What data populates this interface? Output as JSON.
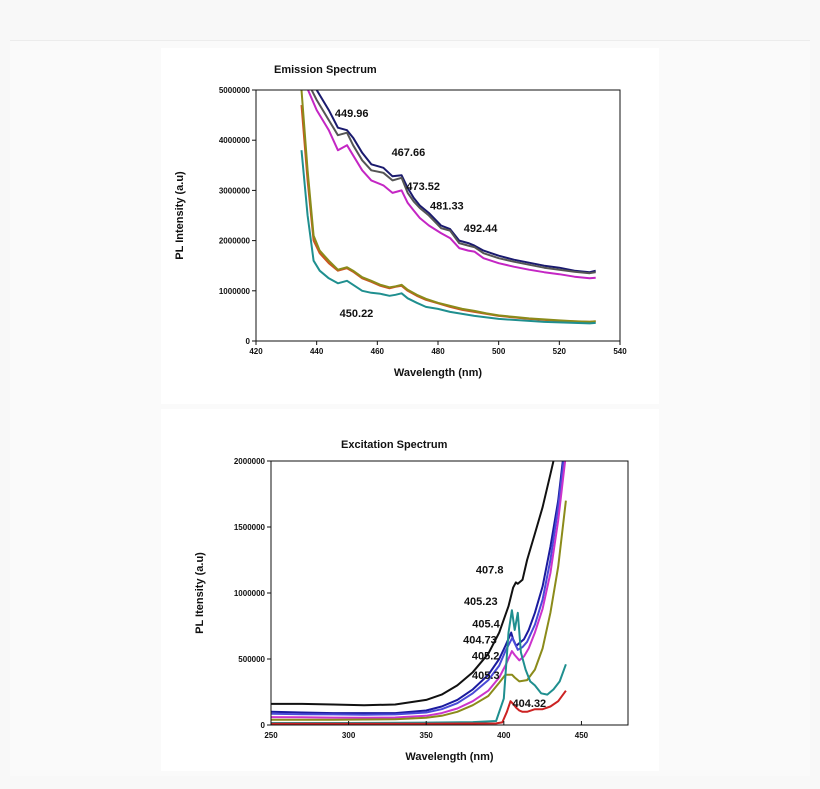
{
  "chart_data": [
    {
      "type": "line",
      "title": "Emission Spectrum",
      "xlabel": "Wavelength (nm)",
      "ylabel": "PL Intensity (a.u)",
      "xlim": [
        420,
        540
      ],
      "ylim": [
        0,
        5000000
      ],
      "xticks": [
        420,
        440,
        460,
        480,
        500,
        520,
        540
      ],
      "yticks": [
        0,
        1000000,
        2000000,
        3000000,
        4000000,
        5000000
      ],
      "xtick_labels": [
        "420",
        "440",
        "460",
        "480",
        "500",
        "520",
        "540"
      ],
      "ytick_labels": [
        "0",
        "1000000",
        "2000000",
        "3000000",
        "4000000",
        "5000000"
      ],
      "grid": false,
      "series": [
        {
          "color": "#1a1a6e",
          "x": [
            435,
            440,
            444,
            447,
            450,
            452,
            455,
            458,
            462,
            465,
            468,
            470,
            472,
            474,
            477,
            481,
            484,
            487,
            490,
            492,
            495,
            500,
            505,
            510,
            515,
            520,
            525,
            530,
            532
          ],
          "y": [
            5500000,
            5000000,
            4600000,
            4250000,
            4200000,
            4050000,
            3750000,
            3520000,
            3450000,
            3280000,
            3300000,
            3050000,
            2850000,
            2700000,
            2550000,
            2300000,
            2230000,
            2000000,
            1950000,
            1900000,
            1800000,
            1700000,
            1620000,
            1560000,
            1500000,
            1460000,
            1400000,
            1370000,
            1400000
          ]
        },
        {
          "color": "#c426c4",
          "x": [
            435,
            440,
            444,
            447,
            450,
            452,
            455,
            458,
            462,
            465,
            468,
            470,
            472,
            474,
            477,
            481,
            484,
            487,
            490,
            492,
            495,
            500,
            505,
            510,
            515,
            520,
            525,
            530,
            532
          ],
          "y": [
            5300000,
            4600000,
            4200000,
            3800000,
            3900000,
            3700000,
            3400000,
            3200000,
            3100000,
            2950000,
            3000000,
            2750000,
            2600000,
            2450000,
            2300000,
            2150000,
            2050000,
            1850000,
            1800000,
            1780000,
            1650000,
            1550000,
            1480000,
            1420000,
            1370000,
            1330000,
            1280000,
            1250000,
            1260000
          ]
        },
        {
          "color": "#555555",
          "x": [
            435,
            440,
            444,
            447,
            450,
            452,
            455,
            458,
            462,
            465,
            468,
            470,
            472,
            474,
            477,
            481,
            484,
            487,
            490,
            492,
            495,
            500,
            505,
            510,
            515,
            520,
            525,
            530,
            532
          ],
          "y": [
            5400000,
            4800000,
            4400000,
            4100000,
            4150000,
            3900000,
            3600000,
            3400000,
            3350000,
            3200000,
            3250000,
            2950000,
            2780000,
            2650000,
            2500000,
            2250000,
            2200000,
            1950000,
            1900000,
            1870000,
            1750000,
            1650000,
            1580000,
            1520000,
            1460000,
            1420000,
            1380000,
            1350000,
            1370000
          ]
        },
        {
          "color": "#cc5522",
          "x": [
            435,
            437,
            439,
            441,
            444,
            447,
            450,
            452,
            455,
            458,
            461,
            464,
            466,
            468,
            470,
            473,
            476,
            480,
            484,
            488,
            492,
            496,
            500,
            505,
            510,
            515,
            520,
            525,
            530,
            532
          ],
          "y": [
            4700000,
            3200000,
            2000000,
            1750000,
            1550000,
            1400000,
            1450000,
            1380000,
            1250000,
            1180000,
            1100000,
            1050000,
            1080000,
            1100000,
            1000000,
            900000,
            820000,
            750000,
            680000,
            620000,
            580000,
            540000,
            500000,
            470000,
            440000,
            420000,
            400000,
            390000,
            380000,
            390000
          ]
        },
        {
          "color": "#8b8b1a",
          "x": [
            435,
            437,
            439,
            441,
            444,
            447,
            450,
            452,
            455,
            458,
            461,
            464,
            466,
            468,
            470,
            473,
            476,
            480,
            484,
            488,
            492,
            496,
            500,
            505,
            510,
            515,
            520,
            525,
            530,
            532
          ],
          "y": [
            5000000,
            3400000,
            2100000,
            1800000,
            1600000,
            1420000,
            1470000,
            1400000,
            1270000,
            1200000,
            1120000,
            1070000,
            1090000,
            1120000,
            1020000,
            920000,
            840000,
            760000,
            700000,
            640000,
            600000,
            550000,
            510000,
            480000,
            450000,
            430000,
            410000,
            395000,
            385000,
            395000
          ]
        },
        {
          "color": "#1f8f8f",
          "x": [
            435,
            437,
            439,
            441,
            444,
            447,
            450,
            452,
            455,
            458,
            461,
            464,
            466,
            468,
            470,
            473,
            476,
            480,
            484,
            488,
            492,
            496,
            500,
            505,
            510,
            515,
            520,
            525,
            530,
            532
          ],
          "y": [
            3800000,
            2500000,
            1600000,
            1400000,
            1250000,
            1150000,
            1200000,
            1120000,
            1000000,
            960000,
            940000,
            900000,
            920000,
            950000,
            850000,
            760000,
            680000,
            640000,
            580000,
            540000,
            500000,
            470000,
            440000,
            420000,
            400000,
            380000,
            370000,
            360000,
            350000,
            360000
          ]
        }
      ],
      "annotations": [
        {
          "text": "449.96",
          "x": 449.96,
          "y": 4320000
        },
        {
          "text": "467.66",
          "x": 467.66,
          "y": 3530000
        },
        {
          "text": "473.52",
          "x": 473.52,
          "y": 2870000
        },
        {
          "text": "481.33",
          "x": 481.33,
          "y": 2480000
        },
        {
          "text": "492.44",
          "x": 492.44,
          "y": 2030000
        },
        {
          "text": "450.22",
          "x": 450.22,
          "y": 800000
        }
      ]
    },
    {
      "type": "line",
      "title": "Excitation Spectrum",
      "xlabel": "Wavelength (nm)",
      "ylabel": "PL Itensity (a.u)",
      "xlim": [
        250,
        480
      ],
      "ylim": [
        0,
        2000000
      ],
      "xticks": [
        250,
        300,
        350,
        400,
        450
      ],
      "yticks": [
        0,
        500000,
        1000000,
        1500000,
        2000000
      ],
      "xtick_labels": [
        "250",
        "300",
        "350",
        "400",
        "450"
      ],
      "ytick_labels": [
        "0",
        "500000",
        "1000000",
        "1500000",
        "2000000"
      ],
      "grid": false,
      "series": [
        {
          "color": "#111111",
          "x": [
            250,
            270,
            290,
            310,
            330,
            350,
            360,
            370,
            380,
            390,
            397,
            403,
            406,
            407.8,
            409,
            412,
            415,
            420,
            425,
            430,
            433,
            435
          ],
          "y": [
            160000,
            160000,
            155000,
            150000,
            155000,
            190000,
            230000,
            300000,
            400000,
            540000,
            700000,
            900000,
            1040000,
            1080000,
            1070000,
            1100000,
            1250000,
            1450000,
            1650000,
            1900000,
            2050000,
            2100000
          ]
        },
        {
          "color": "#1a1a9e",
          "x": [
            250,
            270,
            290,
            310,
            330,
            350,
            360,
            370,
            380,
            390,
            397,
            401,
            404.73,
            406,
            408,
            410,
            413,
            416,
            420,
            425,
            430,
            435,
            438,
            440
          ],
          "y": [
            100000,
            95000,
            90000,
            90000,
            90000,
            110000,
            140000,
            190000,
            270000,
            380000,
            500000,
            600000,
            700000,
            650000,
            600000,
            620000,
            650000,
            720000,
            850000,
            1050000,
            1350000,
            1700000,
            2000000,
            2200000
          ]
        },
        {
          "color": "#4a4ad8",
          "x": [
            250,
            270,
            290,
            310,
            330,
            350,
            360,
            370,
            380,
            390,
            397,
            401,
            405.4,
            407,
            409,
            412,
            415,
            420,
            425,
            430,
            435,
            438,
            440
          ],
          "y": [
            85000,
            82000,
            80000,
            78000,
            80000,
            95000,
            120000,
            165000,
            240000,
            340000,
            450000,
            560000,
            660000,
            620000,
            570000,
            590000,
            630000,
            760000,
            950000,
            1250000,
            1650000,
            1950000,
            2150000
          ]
        },
        {
          "color": "#cc33cc",
          "x": [
            250,
            270,
            290,
            310,
            330,
            350,
            360,
            370,
            380,
            390,
            397,
            401,
            405.2,
            407,
            410,
            413,
            416,
            420,
            425,
            430,
            435,
            438,
            440
          ],
          "y": [
            60000,
            58000,
            56000,
            55000,
            57000,
            70000,
            90000,
            125000,
            180000,
            260000,
            360000,
            450000,
            560000,
            530000,
            490000,
            520000,
            580000,
            700000,
            880000,
            1150000,
            1550000,
            1850000,
            2050000
          ]
        },
        {
          "color": "#8b8b1a",
          "x": [
            250,
            270,
            290,
            310,
            330,
            350,
            360,
            370,
            380,
            390,
            397,
            401,
            405.3,
            407,
            410,
            415,
            420,
            425,
            430,
            435,
            440
          ],
          "y": [
            40000,
            40000,
            40000,
            42000,
            44000,
            55000,
            70000,
            100000,
            150000,
            220000,
            320000,
            380000,
            380000,
            360000,
            330000,
            340000,
            420000,
            580000,
            850000,
            1200000,
            1700000
          ]
        },
        {
          "color": "#1f8f8f",
          "x": [
            250,
            300,
            350,
            380,
            395,
            400,
            403,
            405.23,
            407,
            409,
            411,
            414,
            417,
            420,
            424,
            428,
            432,
            436,
            440
          ],
          "y": [
            15000,
            15000,
            18000,
            22000,
            30000,
            200000,
            700000,
            870000,
            720000,
            850000,
            550000,
            420000,
            330000,
            300000,
            240000,
            230000,
            270000,
            330000,
            460000
          ]
        },
        {
          "color": "#cc2222",
          "x": [
            250,
            300,
            350,
            395,
            399,
            402,
            404.32,
            406,
            408,
            410,
            412,
            415,
            420,
            425,
            430,
            435,
            440
          ],
          "y": [
            10000,
            10000,
            10000,
            12000,
            20000,
            100000,
            180000,
            160000,
            130000,
            110000,
            100000,
            100000,
            120000,
            120000,
            140000,
            180000,
            260000
          ]
        }
      ],
      "annotations": [
        {
          "text": "407.8",
          "x": 407.8,
          "y": 1170000
        },
        {
          "text": "405.23",
          "x": 405.23,
          "y": 930000
        },
        {
          "text": "405.4",
          "x": 405.4,
          "y": 760000
        },
        {
          "text": "404.73",
          "x": 404.73,
          "y": 640000
        },
        {
          "text": "405.2",
          "x": 405.2,
          "y": 520000
        },
        {
          "text": "405.3",
          "x": 405.3,
          "y": 370000
        },
        {
          "text": "404.32",
          "x": 404.32,
          "y": 160000
        }
      ]
    }
  ]
}
